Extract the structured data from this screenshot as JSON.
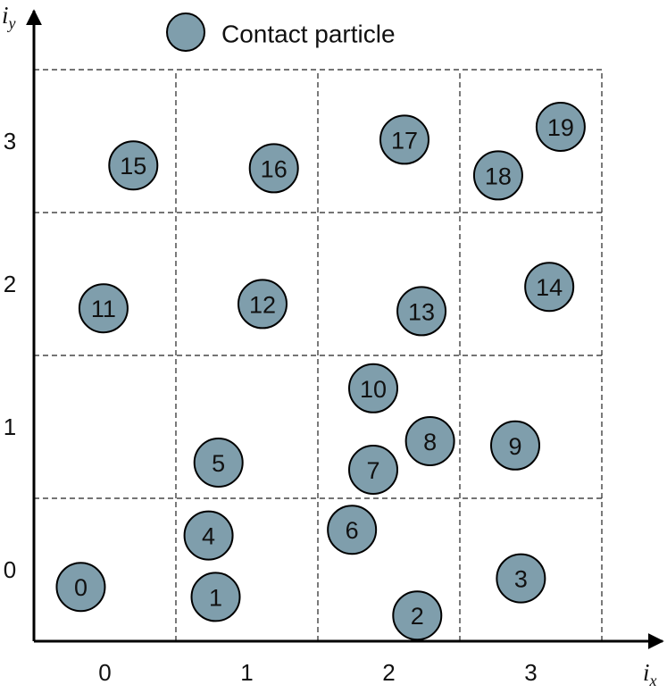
{
  "colors": {
    "particle_fill": "#7f9eac",
    "particle_stroke": "#000000",
    "grid_line": "#222222",
    "axis": "#000000",
    "background": "#ffffff"
  },
  "legend": {
    "label": "Contact particle",
    "icon": "contact-particle-icon"
  },
  "axes": {
    "x": {
      "symbol": "i",
      "subscript": "x",
      "ticks": [
        "0",
        "1",
        "2",
        "3"
      ]
    },
    "y": {
      "symbol": "i",
      "subscript": "y",
      "ticks": [
        "0",
        "1",
        "2",
        "3"
      ]
    }
  },
  "grid": {
    "columns": 4,
    "rows": 4,
    "line_style": "dashed"
  },
  "particles": [
    {
      "id": "0",
      "ix": 0.33,
      "iy": 0.38
    },
    {
      "id": "1",
      "ix": 1.28,
      "iy": 0.31
    },
    {
      "id": "2",
      "ix": 2.7,
      "iy": 0.18
    },
    {
      "id": "3",
      "ix": 3.43,
      "iy": 0.44
    },
    {
      "id": "4",
      "ix": 1.23,
      "iy": 0.74
    },
    {
      "id": "5",
      "ix": 1.3,
      "iy": 1.25
    },
    {
      "id": "6",
      "ix": 2.24,
      "iy": 0.78
    },
    {
      "id": "7",
      "ix": 2.39,
      "iy": 1.2
    },
    {
      "id": "8",
      "ix": 2.79,
      "iy": 1.4
    },
    {
      "id": "9",
      "ix": 3.39,
      "iy": 1.37
    },
    {
      "id": "10",
      "ix": 2.39,
      "iy": 1.77
    },
    {
      "id": "11",
      "ix": 0.49,
      "iy": 2.33
    },
    {
      "id": "12",
      "ix": 1.61,
      "iy": 2.36
    },
    {
      "id": "13",
      "ix": 2.73,
      "iy": 2.31
    },
    {
      "id": "14",
      "ix": 3.63,
      "iy": 2.48
    },
    {
      "id": "15",
      "ix": 0.7,
      "iy": 3.33
    },
    {
      "id": "16",
      "ix": 1.69,
      "iy": 3.31
    },
    {
      "id": "17",
      "ix": 2.61,
      "iy": 3.51
    },
    {
      "id": "18",
      "ix": 3.27,
      "iy": 3.26
    },
    {
      "id": "19",
      "ix": 3.71,
      "iy": 3.6
    }
  ]
}
